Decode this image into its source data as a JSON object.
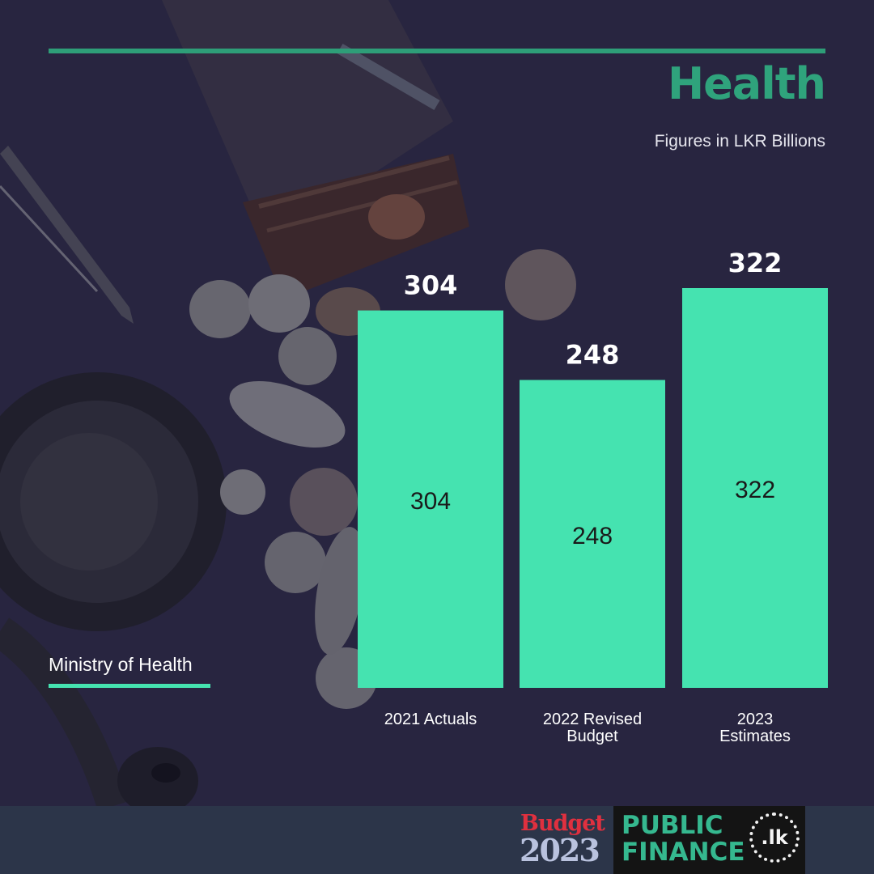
{
  "title": "Health",
  "subtitle": "Figures in LKR Billions",
  "ministry_label": "Ministry of Health",
  "colors": {
    "bar": "#45e3b0",
    "title": "#2fa37c",
    "background": "#2d2a45",
    "footer": "#2c3549"
  },
  "chart_data": {
    "type": "bar",
    "title": "Health",
    "subtitle": "Figures in LKR Billions",
    "categories": [
      "2021 Actuals",
      "2022 Revised Budget",
      "2023 Estimates"
    ],
    "category_lines": [
      [
        "2021 Actuals"
      ],
      [
        "2022 Revised",
        "Budget"
      ],
      [
        "2023",
        "Estimates"
      ]
    ],
    "values": [
      304,
      248,
      322
    ],
    "ylim": [
      0,
      322
    ],
    "grid": false,
    "legend": "none"
  },
  "footer": {
    "budget_word": "Budget",
    "budget_year": "2023",
    "brand": "PUBLIC FINANCE",
    "brand_lines": [
      "PUBLIC",
      "FINANCE"
    ],
    "seal": ".lk"
  }
}
